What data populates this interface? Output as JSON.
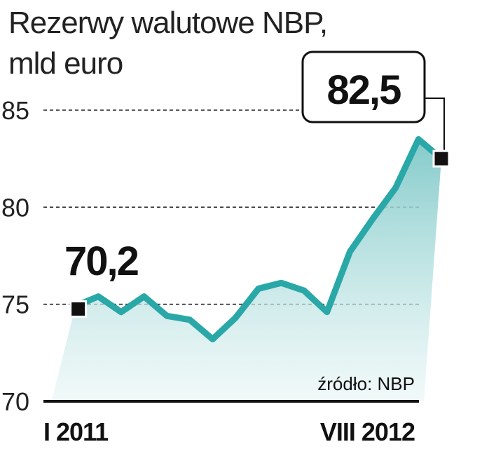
{
  "chart_data": {
    "type": "area",
    "title": "Rezerwy walutowe NBP,",
    "subtitle": "mld euro",
    "source": "źródło: NBP",
    "ylim": [
      70,
      86
    ],
    "yticks": [
      70,
      75,
      80,
      85
    ],
    "y_tick_labels": [
      "70",
      "75",
      "80",
      "85"
    ],
    "x_start_label": "I 2011",
    "x_end_label": "VIII 2012",
    "series": [
      {
        "values": [
          70.2,
          74.9,
          75.4,
          74.6,
          75.4,
          74.4,
          74.2,
          73.2,
          74.3,
          75.8,
          76.1,
          75.7,
          74.6,
          77.7,
          79.4,
          81.0,
          83.5,
          82.5
        ]
      }
    ],
    "start_label": "70,2",
    "end_label": "82,5",
    "grid": "dashed horizontal",
    "colors": {
      "line": "#2aa8a8",
      "fill_top": "#7ec8c8",
      "fill_bottom": "#e8f5f5",
      "axis": "#111111",
      "marker": "#111111"
    }
  }
}
